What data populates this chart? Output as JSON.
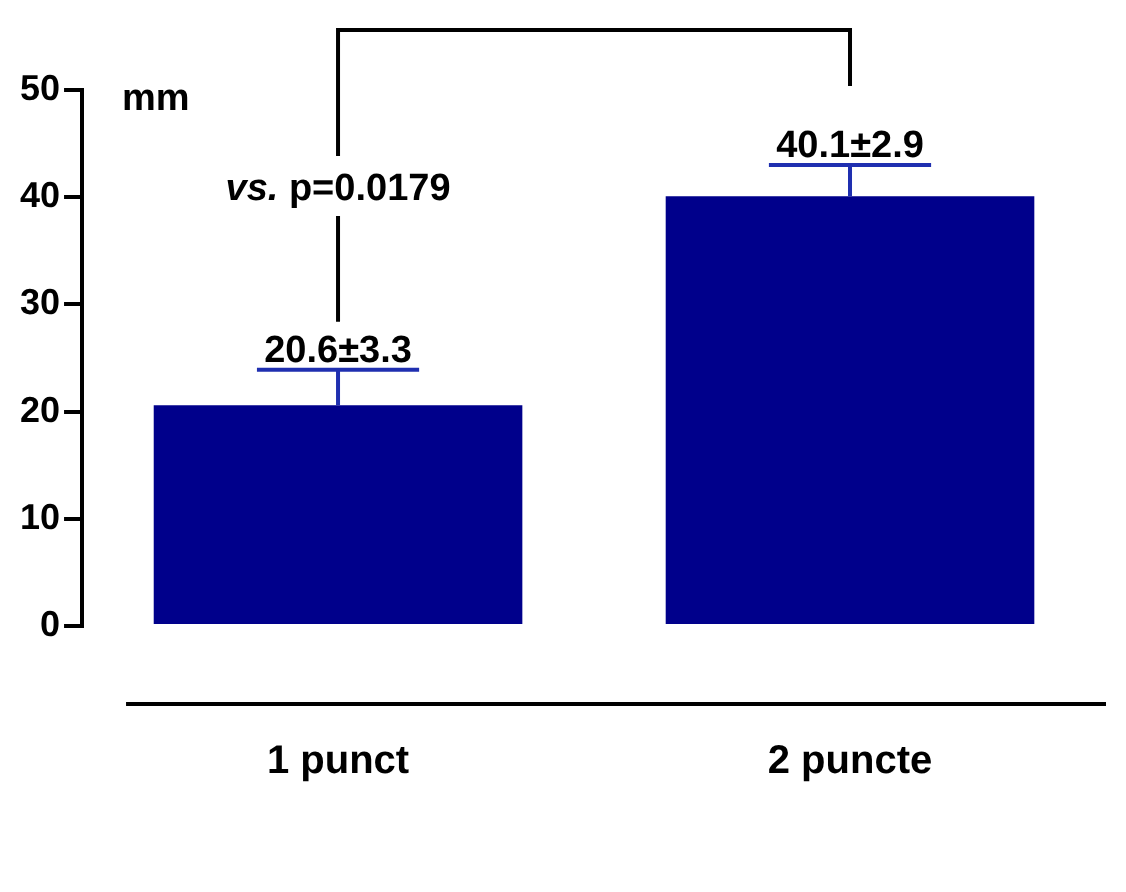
{
  "chart_data": {
    "type": "bar",
    "ylabel": "mm",
    "categories": [
      "1 punct",
      "2 puncte"
    ],
    "values": [
      20.6,
      40.1
    ],
    "color": "#00008b",
    "errors": [
      [
        20.6,
        23.9
      ],
      [
        40.1,
        43.0
      ]
    ],
    "value_labels": [
      "20.6±3.3",
      "40.1±2.9"
    ],
    "annotations": [
      "vs. p=0.0179"
    ],
    "ylim": [
      0,
      50
    ],
    "yticks": [
      0,
      10,
      20,
      30,
      40,
      50
    ],
    "grid": false,
    "legend": false
  }
}
